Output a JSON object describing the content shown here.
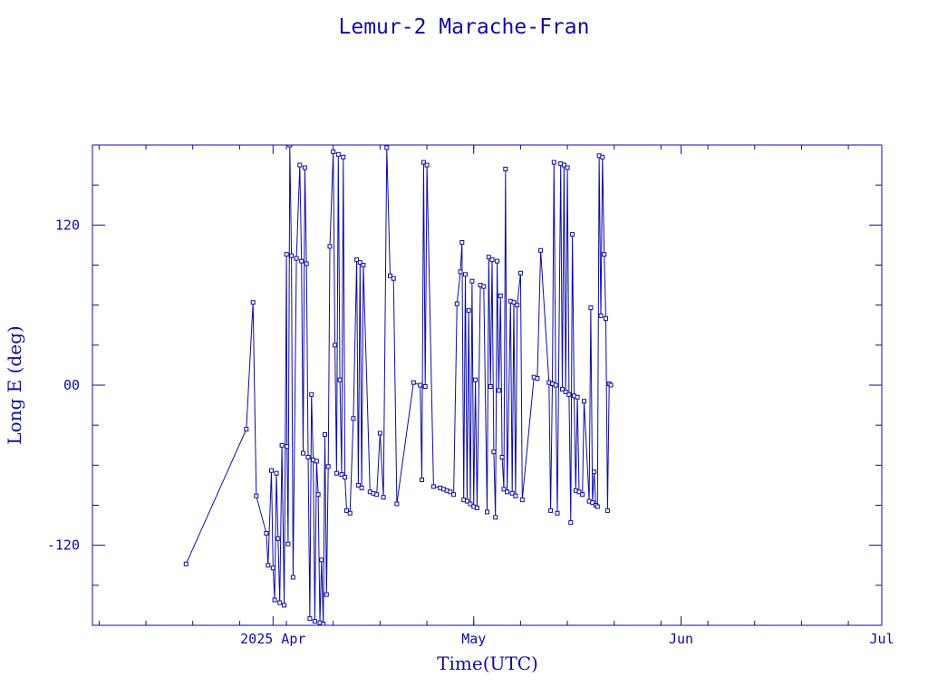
{
  "chart_data": {
    "type": "line",
    "title": "Lemur-2 Marache-Fran",
    "xlabel": "Time(UTC)",
    "ylabel": "Long E (deg)",
    "x_unit": "date (UTC)",
    "xlim": [
      "2025-03-05",
      "2025-07-01"
    ],
    "ylim": [
      -180,
      180
    ],
    "y_ticks": [
      -120,
      0,
      120
    ],
    "y_tick_labels": [
      "-120",
      "00",
      "120"
    ],
    "x_tick_labels": [
      {
        "date": "2025-04-01",
        "label": "2025 Apr"
      },
      {
        "date": "2025-05-01",
        "label": "May"
      },
      {
        "date": "2025-06-01",
        "label": "Jun"
      },
      {
        "date": "2025-07-01",
        "label": "Jul"
      }
    ],
    "grid": false,
    "marker": "square",
    "color": "#0c0ca8",
    "series": [
      {
        "points": [
          [
            "2025-03-19",
            -134
          ],
          [
            "2025-03-28",
            -33
          ],
          [
            "2025-03-29",
            62
          ],
          [
            "2025-03-29 12:00",
            -83
          ],
          [
            "2025-03-31",
            -111
          ],
          [
            "2025-03-31 06:00",
            -135
          ],
          [
            "2025-03-31 18:00",
            -64
          ],
          [
            "2025-04-01",
            -137
          ],
          [
            "2025-04-01 06:00",
            -161
          ],
          [
            "2025-04-01 12:00",
            -66
          ],
          [
            "2025-04-01 18:00",
            -115
          ],
          [
            "2025-04-02",
            -163
          ],
          [
            "2025-04-02 08:00",
            -45
          ],
          [
            "2025-04-02 16:00",
            -165
          ],
          [
            "2025-04-03",
            98
          ],
          [
            "2025-04-03 02:00",
            -46
          ],
          [
            "2025-04-03 06:00",
            -119
          ],
          [
            "2025-04-03 12:00",
            180
          ],
          [
            "2025-04-03 18:00",
            97
          ],
          [
            "2025-04-04",
            -144
          ],
          [
            "2025-04-04 12:00",
            95
          ],
          [
            "2025-04-05",
            165
          ],
          [
            "2025-04-05 06:00",
            93
          ],
          [
            "2025-04-05 12:00",
            -51
          ],
          [
            "2025-04-05 18:00",
            163
          ],
          [
            "2025-04-06",
            91
          ],
          [
            "2025-04-06 06:00",
            -54
          ],
          [
            "2025-04-06 12:00",
            -175
          ],
          [
            "2025-04-06 18:00",
            -7
          ],
          [
            "2025-04-07",
            -56
          ],
          [
            "2025-04-07 06:00",
            -177
          ],
          [
            "2025-04-07 12:00",
            -57
          ],
          [
            "2025-04-07 18:00",
            -82
          ],
          [
            "2025-04-08",
            -178
          ],
          [
            "2025-04-08 06:00",
            -131
          ],
          [
            "2025-04-08 12:00",
            -179
          ],
          [
            "2025-04-08 18:00",
            -37
          ],
          [
            "2025-04-09",
            -157
          ],
          [
            "2025-04-09 06:00",
            -61
          ],
          [
            "2025-04-09 12:00",
            104
          ],
          [
            "2025-04-10",
            175
          ],
          [
            "2025-04-10 06:00",
            30
          ],
          [
            "2025-04-10 12:00",
            -66
          ],
          [
            "2025-04-10 18:00",
            173
          ],
          [
            "2025-04-11",
            4
          ],
          [
            "2025-04-11 06:00",
            -67
          ],
          [
            "2025-04-11 12:00",
            171
          ],
          [
            "2025-04-11 18:00",
            -69
          ],
          [
            "2025-04-12",
            -94
          ],
          [
            "2025-04-12 12:00",
            -96
          ],
          [
            "2025-04-13",
            -25
          ],
          [
            "2025-04-13 12:00",
            94
          ],
          [
            "2025-04-13 18:00",
            -75
          ],
          [
            "2025-04-14",
            92
          ],
          [
            "2025-04-14 06:00",
            -77
          ],
          [
            "2025-04-14 12:00",
            90
          ],
          [
            "2025-04-15 12:00",
            -80
          ],
          [
            "2025-04-16",
            -81
          ],
          [
            "2025-04-16 12:00",
            -82
          ],
          [
            "2025-04-17",
            -36
          ],
          [
            "2025-04-17 12:00",
            -84
          ],
          [
            "2025-04-18",
            178
          ],
          [
            "2025-04-18 12:00",
            82
          ],
          [
            "2025-04-19",
            80
          ],
          [
            "2025-04-19 12:00",
            -89
          ],
          [
            "2025-04-22",
            2
          ],
          [
            "2025-04-23",
            0
          ],
          [
            "2025-04-23 06:00",
            -71
          ],
          [
            "2025-04-23 12:00",
            167
          ],
          [
            "2025-04-23 18:00",
            -1
          ],
          [
            "2025-04-24",
            165
          ],
          [
            "2025-04-25",
            -76
          ],
          [
            "2025-04-26",
            -77
          ],
          [
            "2025-04-26 12:00",
            -78
          ],
          [
            "2025-04-27",
            -79
          ],
          [
            "2025-04-27 12:00",
            -80
          ],
          [
            "2025-04-28",
            -82
          ],
          [
            "2025-04-28 12:00",
            61
          ],
          [
            "2025-04-29",
            85
          ],
          [
            "2025-04-29 06:00",
            107
          ],
          [
            "2025-04-29 12:00",
            -86
          ],
          [
            "2025-04-29 18:00",
            83
          ],
          [
            "2025-04-30",
            -87
          ],
          [
            "2025-04-30 06:00",
            56
          ],
          [
            "2025-04-30 12:00",
            -89
          ],
          [
            "2025-04-30 18:00",
            78
          ],
          [
            "2025-05-01",
            -91
          ],
          [
            "2025-05-01 06:00",
            4
          ],
          [
            "2025-05-01 12:00",
            -92
          ],
          [
            "2025-05-02",
            75
          ],
          [
            "2025-05-02 12:00",
            74
          ],
          [
            "2025-05-03",
            -95
          ],
          [
            "2025-05-03 06:00",
            96
          ],
          [
            "2025-05-03 12:00",
            -1
          ],
          [
            "2025-05-03 18:00",
            94
          ],
          [
            "2025-05-04",
            -50
          ],
          [
            "2025-05-04 06:00",
            -99
          ],
          [
            "2025-05-04 12:00",
            93
          ],
          [
            "2025-05-04 18:00",
            -4
          ],
          [
            "2025-05-05",
            67
          ],
          [
            "2025-05-05 06:00",
            -54
          ],
          [
            "2025-05-05 12:00",
            -78
          ],
          [
            "2025-05-05 18:00",
            162
          ],
          [
            "2025-05-06",
            -80
          ],
          [
            "2025-05-06 12:00",
            63
          ],
          [
            "2025-05-06 18:00",
            -81
          ],
          [
            "2025-05-07",
            62
          ],
          [
            "2025-05-07 06:00",
            -83
          ],
          [
            "2025-05-07 12:00",
            60
          ],
          [
            "2025-05-08",
            84
          ],
          [
            "2025-05-08 06:00",
            -86
          ],
          [
            "2025-05-10",
            6
          ],
          [
            "2025-05-10 12:00",
            5
          ],
          [
            "2025-05-11",
            101
          ],
          [
            "2025-05-12 06:00",
            2
          ],
          [
            "2025-05-12 12:00",
            -94
          ],
          [
            "2025-05-12 18:00",
            1
          ],
          [
            "2025-05-13",
            167
          ],
          [
            "2025-05-13 06:00",
            0
          ],
          [
            "2025-05-13 12:00",
            -96
          ],
          [
            "2025-05-14",
            166
          ],
          [
            "2025-05-14 06:00",
            -3
          ],
          [
            "2025-05-14 12:00",
            165
          ],
          [
            "2025-05-14 18:00",
            -5
          ],
          [
            "2025-05-15",
            163
          ],
          [
            "2025-05-15 06:00",
            -7
          ],
          [
            "2025-05-15 12:00",
            -103
          ],
          [
            "2025-05-15 18:00",
            113
          ],
          [
            "2025-05-16",
            -8
          ],
          [
            "2025-05-16 06:00",
            -79
          ],
          [
            "2025-05-16 12:00",
            -9
          ],
          [
            "2025-05-16 18:00",
            -80
          ],
          [
            "2025-05-17 06:00",
            -82
          ],
          [
            "2025-05-17 12:00",
            -12
          ],
          [
            "2025-05-18 06:00",
            -87
          ],
          [
            "2025-05-18 12:00",
            58
          ],
          [
            "2025-05-18 18:00",
            -88
          ],
          [
            "2025-05-19",
            -65
          ],
          [
            "2025-05-19 06:00",
            -90
          ],
          [
            "2025-05-19 12:00",
            -91
          ],
          [
            "2025-05-19 18:00",
            172
          ],
          [
            "2025-05-20",
            52
          ],
          [
            "2025-05-20 06:00",
            171
          ],
          [
            "2025-05-20 12:00",
            98
          ],
          [
            "2025-05-20 18:00",
            50
          ],
          [
            "2025-05-21",
            -94
          ],
          [
            "2025-05-21 06:00",
            1
          ],
          [
            "2025-05-21 12:00",
            0
          ]
        ]
      }
    ]
  }
}
